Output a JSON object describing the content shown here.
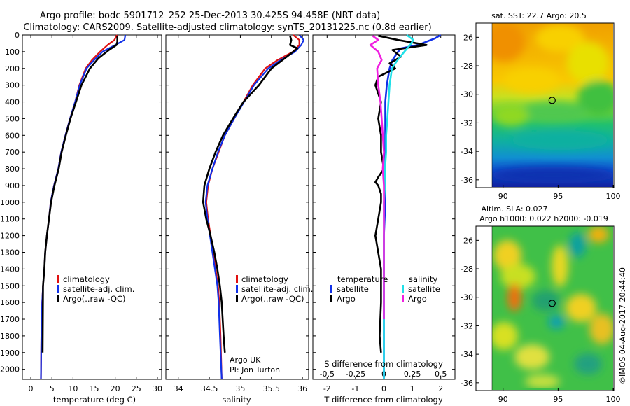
{
  "titles": {
    "line1": "Argo profile: bodc 5901712_252 25-Dec-2013 30.425S 94.458E (NRT data)",
    "line2": "Climatology: CARS2009. Satellite-adjusted climatology: synTS_20131225.nc (0.8d earlier)"
  },
  "colors": {
    "climatology": "#e01010",
    "satellite_adj": "#1030e8",
    "argo": "#000000",
    "sat_salinity": "#20e0e8",
    "argo_salinity": "#f020e0"
  },
  "legend": {
    "climatology": "climatology",
    "satellite_adj": "satellite-adj. clim.",
    "argo": "Argo(..raw -QC)",
    "temperature_header": "temperature",
    "salinity_header": "salinity",
    "satellite": "satellite",
    "argo_short": "Argo"
  },
  "annotations": {
    "institution": "Argo UK",
    "pi": "PI: Jon Turton",
    "map1_title": "sat. SST: 22.7 Argo: 20.5",
    "map2_title_line1": "Altim. SLA: 0.027",
    "map2_title_line2": "Argo h1000: 0.022 h2000: -0.019",
    "side_stamp": "©IMOS 04-Aug-2017 20:44:40"
  },
  "chart_data": [
    {
      "id": "temperature",
      "type": "line",
      "xlabel": "temperature (deg C)",
      "ylabel": "",
      "xlim": [
        -2,
        31
      ],
      "ylim": [
        2060,
        0
      ],
      "xticks": [
        0,
        5,
        10,
        15,
        20,
        25,
        30
      ],
      "yticks": [
        0,
        100,
        200,
        300,
        400,
        500,
        600,
        700,
        800,
        900,
        1000,
        1100,
        1200,
        1300,
        1400,
        1500,
        1600,
        1700,
        1800,
        1900,
        2000
      ],
      "series": [
        {
          "name": "climatology",
          "color_key": "climatology",
          "x": [
            20.4,
            19.8,
            18.2,
            16.4,
            14.5,
            13.0,
            11.5,
            10.5,
            9.3,
            8.2,
            7.2,
            6.5,
            5.5,
            4.7,
            4.3,
            3.8,
            3.4,
            3.2,
            2.9,
            2.7,
            2.5,
            2.4
          ],
          "y": [
            0,
            30,
            60,
            100,
            150,
            200,
            300,
            400,
            500,
            600,
            700,
            800,
            900,
            1000,
            1100,
            1200,
            1300,
            1400,
            1500,
            1600,
            1800,
            2060
          ]
        },
        {
          "name": "satellite-adj. clim.",
          "color_key": "satellite_adj",
          "x": [
            22.4,
            22.2,
            20.0,
            17.0,
            15.0,
            13.2,
            11.6,
            10.5,
            9.3,
            8.2,
            7.2,
            6.5,
            5.5,
            4.7,
            4.3,
            3.8,
            3.4,
            3.2,
            2.9,
            2.7,
            2.5,
            2.4
          ],
          "y": [
            0,
            30,
            60,
            100,
            150,
            200,
            300,
            400,
            500,
            600,
            700,
            800,
            900,
            1000,
            1100,
            1200,
            1300,
            1400,
            1500,
            1600,
            1800,
            2060
          ]
        },
        {
          "name": "Argo(..raw -QC)",
          "color_key": "argo",
          "x": [
            20.5,
            20.5,
            20.3,
            18.5,
            16.0,
            14.0,
            12.0,
            10.7,
            9.4,
            8.3,
            7.3,
            6.6,
            5.6,
            4.8,
            4.3,
            3.8,
            3.4,
            3.2,
            2.9,
            2.8
          ],
          "y": [
            5,
            40,
            60,
            90,
            140,
            200,
            300,
            400,
            500,
            600,
            700,
            800,
            900,
            1000,
            1100,
            1200,
            1300,
            1400,
            1500,
            1900
          ]
        }
      ],
      "legend_placement": "lower-center",
      "grid": false
    },
    {
      "id": "salinity",
      "type": "line",
      "xlabel": "salinity",
      "ylabel": "",
      "xlim": [
        33.8,
        36.1
      ],
      "ylim": [
        2060,
        0
      ],
      "xticks": [
        34,
        34.5,
        35,
        35.5,
        36
      ],
      "yticks": [
        0,
        100,
        200,
        300,
        400,
        500,
        600,
        700,
        800,
        900,
        1000,
        1100,
        1200,
        1300,
        1400,
        1500,
        1600,
        1700,
        1800,
        1900,
        2000
      ],
      "series": [
        {
          "name": "climatology",
          "color_key": "climatology",
          "x": [
            35.85,
            35.95,
            35.95,
            35.85,
            35.6,
            35.4,
            35.2,
            35.05,
            34.9,
            34.75,
            34.65,
            34.55,
            34.48,
            34.45,
            34.48,
            34.52,
            34.56,
            34.6,
            34.64,
            34.66,
            34.68,
            34.7
          ],
          "y": [
            0,
            30,
            60,
            100,
            150,
            200,
            300,
            400,
            500,
            600,
            700,
            800,
            900,
            1000,
            1100,
            1200,
            1300,
            1400,
            1500,
            1600,
            1800,
            2060
          ]
        },
        {
          "name": "satellite-adj. clim.",
          "color_key": "satellite_adj",
          "x": [
            35.95,
            36.02,
            35.98,
            35.88,
            35.65,
            35.45,
            35.22,
            35.06,
            34.9,
            34.75,
            34.64,
            34.55,
            34.47,
            34.44,
            34.47,
            34.51,
            34.55,
            34.59,
            34.63,
            34.65,
            34.67,
            34.7
          ],
          "y": [
            0,
            30,
            60,
            100,
            150,
            200,
            300,
            400,
            500,
            600,
            700,
            800,
            900,
            1000,
            1100,
            1200,
            1300,
            1400,
            1500,
            1600,
            1800,
            2060
          ]
        },
        {
          "name": "Argo(..raw -QC)",
          "color_key": "argo",
          "x": [
            35.8,
            35.82,
            35.8,
            35.92,
            35.75,
            35.5,
            35.3,
            35.05,
            34.88,
            34.72,
            34.6,
            34.5,
            34.42,
            34.4,
            34.45,
            34.52,
            34.58,
            34.63,
            34.67,
            34.7,
            34.73,
            34.75
          ],
          "y": [
            5,
            30,
            60,
            80,
            130,
            200,
            300,
            400,
            500,
            600,
            700,
            800,
            900,
            1000,
            1100,
            1200,
            1300,
            1400,
            1500,
            1600,
            1800,
            1900
          ]
        }
      ],
      "legend_placement": "lower-center",
      "grid": false
    },
    {
      "id": "differences",
      "type": "line",
      "xlabel": "T difference from climatology",
      "xlabel2": "S difference from climatology",
      "ylabel": "",
      "xlim": [
        -2.5,
        2.5
      ],
      "ylim": [
        2060,
        0
      ],
      "xticks": [
        -2,
        -1,
        0,
        1,
        2
      ],
      "x2ticks": [
        -0.5,
        -0.25,
        0,
        0.25,
        0.5
      ],
      "x2ticklabels": [
        "-0.5",
        "-0.25",
        "0",
        "0.25",
        "0.5"
      ],
      "yticks": [
        0,
        100,
        200,
        300,
        400,
        500,
        600,
        700,
        800,
        900,
        1000,
        1100,
        1200,
        1300,
        1400,
        1500,
        1600,
        1700,
        1800,
        1900,
        2000
      ],
      "series": [
        {
          "name": "temperature satellite",
          "color_key": "satellite_adj",
          "x": [
            2.0,
            1.8,
            1.5,
            1.2,
            0.6,
            0.5,
            0.3,
            0.2,
            0.1,
            0.05,
            0.05,
            0.05,
            0.05,
            0.0,
            0.0,
            0.0,
            0.0,
            0.0,
            0.0,
            0.0
          ],
          "y": [
            0,
            20,
            40,
            60,
            80,
            100,
            150,
            200,
            300,
            400,
            600,
            800,
            1000,
            1200,
            1400,
            1600,
            1800,
            1900,
            2000,
            2060
          ]
        },
        {
          "name": "temperature Argo",
          "color_key": "argo",
          "x": [
            -0.2,
            0.5,
            1.5,
            0.3,
            0.6,
            0.2,
            0.4,
            -0.2,
            -0.3,
            -0.1,
            -0.2,
            -0.1,
            -0.1,
            0.0,
            -0.2,
            -0.3,
            -0.2,
            -0.1,
            -0.1,
            -0.2,
            -0.3,
            -0.1,
            -0.1,
            -0.15,
            -0.1
          ],
          "y": [
            5,
            30,
            60,
            90,
            130,
            170,
            200,
            250,
            300,
            400,
            500,
            600,
            700,
            800,
            850,
            880,
            900,
            950,
            1000,
            1100,
            1200,
            1400,
            1600,
            1800,
            1900
          ]
        },
        {
          "name": "salinity satellite",
          "color_key": "sat_salinity",
          "x": [
            0.2,
            0.26,
            0.23,
            0.18,
            0.12,
            0.07,
            0.05,
            0.04,
            0.03,
            0.02,
            0.02,
            0.01,
            0.01,
            0.0,
            0.0,
            0.0,
            0.0,
            0.0,
            0.0
          ],
          "y": [
            0,
            30,
            60,
            100,
            150,
            200,
            300,
            400,
            500,
            600,
            700,
            800,
            900,
            1000,
            1200,
            1400,
            1600,
            1800,
            2060
          ]
        },
        {
          "name": "salinity Argo",
          "color_key": "argo_salinity",
          "x": [
            -0.1,
            -0.05,
            -0.12,
            -0.05,
            -0.02,
            -0.06,
            -0.05,
            -0.03,
            -0.02,
            -0.01,
            0.0,
            -0.01,
            0.0,
            0.0,
            0.0,
            0.0,
            0.0
          ],
          "y": [
            5,
            30,
            60,
            100,
            150,
            200,
            300,
            400,
            500,
            600,
            700,
            800,
            900,
            1100,
            1300,
            1500,
            1700
          ]
        }
      ],
      "legend_placement": "lower-center",
      "grid": false
    },
    {
      "id": "map_sst",
      "type": "heatmap",
      "title": "sat. SST: 22.7 Argo: 20.5",
      "xlim": [
        89,
        100.5
      ],
      "ylim": [
        -36.5,
        -24.7
      ],
      "xticks": [
        90,
        95,
        100
      ],
      "yticks": [
        -26,
        -28,
        -30,
        -32,
        -34,
        -36
      ],
      "ytick_labels": [
        "-26",
        "-28",
        "-30",
        "-32",
        "-34",
        "-36"
      ],
      "marker": {
        "lon": 94.458,
        "lat": -30.425
      }
    },
    {
      "id": "map_sla",
      "type": "heatmap",
      "title": "Altim. SLA: 0.027",
      "subtitle": "Argo h1000: 0.022 h2000: -0.019",
      "xlim": [
        89,
        100.5
      ],
      "ylim": [
        -36.5,
        -24.7
      ],
      "xticks": [
        90,
        95,
        100
      ],
      "yticks": [
        -26,
        -28,
        -30,
        -32,
        -34,
        -36
      ],
      "ytick_labels": [
        "-26",
        "-28",
        "-30",
        "-32",
        "-34",
        "-36"
      ],
      "marker": {
        "lon": 94.458,
        "lat": -30.425
      }
    }
  ]
}
